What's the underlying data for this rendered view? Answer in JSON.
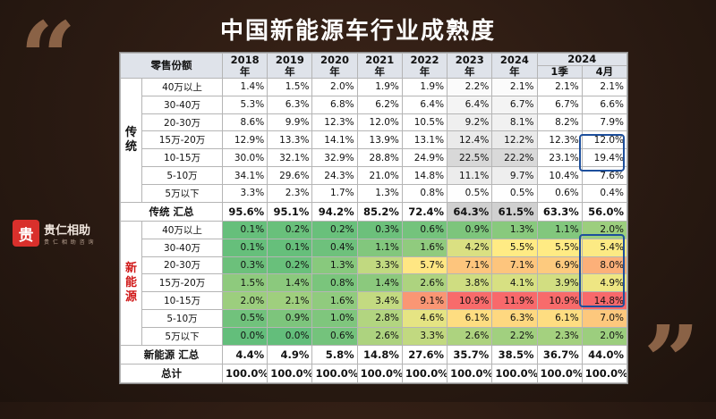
{
  "title": "中国新能源车行业成熟度",
  "logo": {
    "mark": "贵",
    "name": "贵仁相助",
    "sub": "贵 仁 相 助 咨 询"
  },
  "colors": {
    "accent_box": "#1d4f9c",
    "category_red": "#d01818"
  },
  "chart_data": {
    "type": "table",
    "header": {
      "corner": "零售份额",
      "years": [
        "2018\n年",
        "2019\n年",
        "2020\n年",
        "2021\n年",
        "2022\n年",
        "2023\n年",
        "2024\n年"
      ],
      "group_2024": "2024",
      "sub_2024": [
        "1季",
        "4月"
      ]
    },
    "sections": [
      {
        "name": "传\n统",
        "rows": [
          {
            "label": "40万以上",
            "values": [
              "1.4%",
              "1.5%",
              "2.0%",
              "1.9%",
              "1.9%",
              "2.2%",
              "2.1%",
              "2.1%",
              "2.1%"
            ]
          },
          {
            "label": "30-40万",
            "values": [
              "5.3%",
              "6.3%",
              "6.8%",
              "6.2%",
              "6.4%",
              "6.4%",
              "6.7%",
              "6.7%",
              "6.6%"
            ]
          },
          {
            "label": "20-30万",
            "values": [
              "8.6%",
              "9.9%",
              "12.3%",
              "12.0%",
              "10.5%",
              "9.2%",
              "8.1%",
              "8.2%",
              "7.9%"
            ]
          },
          {
            "label": "15万-20万",
            "values": [
              "12.9%",
              "13.3%",
              "14.1%",
              "13.9%",
              "13.1%",
              "12.4%",
              "12.2%",
              "12.3%",
              "12.0%"
            ]
          },
          {
            "label": "10-15万",
            "values": [
              "30.0%",
              "32.1%",
              "32.9%",
              "28.8%",
              "24.9%",
              "22.5%",
              "22.2%",
              "23.1%",
              "19.4%"
            ]
          },
          {
            "label": "5-10万",
            "values": [
              "34.1%",
              "29.6%",
              "24.3%",
              "21.0%",
              "14.8%",
              "11.1%",
              "9.7%",
              "10.4%",
              "7.6%"
            ]
          },
          {
            "label": "5万以下",
            "values": [
              "3.3%",
              "2.3%",
              "1.7%",
              "1.3%",
              "0.8%",
              "0.5%",
              "0.5%",
              "0.6%",
              "0.4%"
            ]
          }
        ],
        "summary": {
          "label": "传统 汇总",
          "values": [
            "95.6%",
            "95.1%",
            "94.2%",
            "85.2%",
            "72.4%",
            "64.3%",
            "61.5%",
            "63.3%",
            "56.0%"
          ]
        }
      },
      {
        "name": "新\n能\n源",
        "rows": [
          {
            "label": "40万以上",
            "values": [
              "0.1%",
              "0.2%",
              "0.2%",
              "0.3%",
              "0.6%",
              "0.9%",
              "1.3%",
              "1.1%",
              "2.0%"
            ]
          },
          {
            "label": "30-40万",
            "values": [
              "0.1%",
              "0.1%",
              "0.4%",
              "1.1%",
              "1.6%",
              "4.2%",
              "5.5%",
              "5.5%",
              "5.4%"
            ]
          },
          {
            "label": "20-30万",
            "values": [
              "0.3%",
              "0.2%",
              "1.3%",
              "3.3%",
              "5.7%",
              "7.1%",
              "7.1%",
              "6.9%",
              "8.0%"
            ]
          },
          {
            "label": "15万-20万",
            "values": [
              "1.5%",
              "1.4%",
              "0.8%",
              "1.4%",
              "2.6%",
              "3.8%",
              "4.1%",
              "3.9%",
              "4.9%"
            ]
          },
          {
            "label": "10-15万",
            "values": [
              "2.0%",
              "2.1%",
              "1.6%",
              "3.4%",
              "9.1%",
              "10.9%",
              "11.9%",
              "10.9%",
              "14.8%"
            ]
          },
          {
            "label": "5-10万",
            "values": [
              "0.5%",
              "0.9%",
              "1.0%",
              "2.8%",
              "4.6%",
              "6.1%",
              "6.3%",
              "6.1%",
              "7.0%"
            ]
          },
          {
            "label": "5万以下",
            "values": [
              "0.0%",
              "0.0%",
              "0.6%",
              "2.6%",
              "3.3%",
              "2.6%",
              "2.2%",
              "2.3%",
              "2.0%"
            ]
          }
        ],
        "summary": {
          "label": "新能源 汇总",
          "values": [
            "4.4%",
            "4.9%",
            "5.8%",
            "14.8%",
            "27.6%",
            "35.7%",
            "38.5%",
            "36.7%",
            "44.0%"
          ]
        }
      }
    ],
    "total": {
      "label": "总计",
      "values": [
        "100.0%",
        "100.0%",
        "100.0%",
        "100.0%",
        "100.0%",
        "100.0%",
        "100.0%",
        "100.0%",
        "100.0%"
      ]
    }
  }
}
